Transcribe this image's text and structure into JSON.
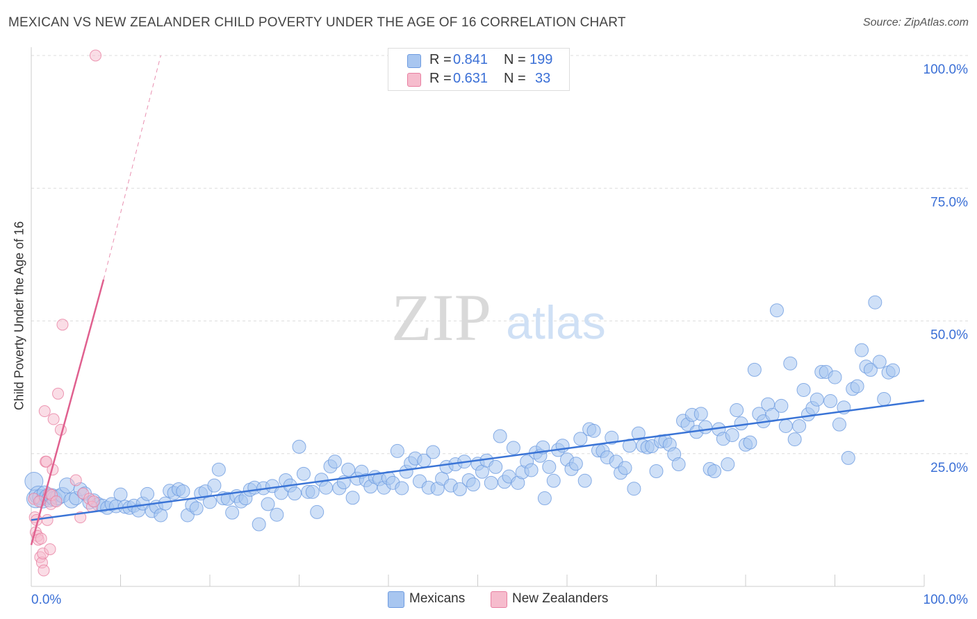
{
  "header": {
    "title": "MEXICAN VS NEW ZEALANDER CHILD POVERTY UNDER THE AGE OF 16 CORRELATION CHART",
    "source": "Source: ZipAtlas.com"
  },
  "watermark": {
    "zip": "ZIP",
    "atlas": "atlas"
  },
  "colors": {
    "blue_fill": "#a8c6f0",
    "blue_stroke": "#6d9be0",
    "blue_line": "#3a74d6",
    "pink_fill": "#f6bccd",
    "pink_stroke": "#e87fa1",
    "pink_line": "#e0608f",
    "axis_text": "#3a6fd6",
    "grid": "#dcdcdc"
  },
  "legend_top": {
    "rows": [
      {
        "r_label": "R =",
        "r_value": "0.841",
        "n_label": "N =",
        "n_value": "199"
      },
      {
        "r_label": "R =",
        "r_value": "0.631",
        "n_label": "N =",
        "n_value": "33"
      }
    ]
  },
  "legend_bottom": {
    "items": [
      "Mexicans",
      "New Zealanders"
    ]
  },
  "chart_data": {
    "type": "scatter",
    "title": "MEXICAN VS NEW ZEALANDER CHILD POVERTY UNDER THE AGE OF 16 CORRELATION CHART",
    "xlabel": "",
    "ylabel": "Child Poverty Under the Age of 16",
    "xlim": [
      0,
      100
    ],
    "ylim": [
      0,
      100
    ],
    "x_tick_labels": [
      "0.0%",
      "100.0%"
    ],
    "y_tick_values": [
      25,
      50,
      75,
      100
    ],
    "y_tick_labels": [
      "25.0%",
      "50.0%",
      "75.0%",
      "100.0%"
    ],
    "grid": true,
    "series": [
      {
        "name": "Mexicans",
        "r": 0.841,
        "n": 199,
        "trend": {
          "x": [
            0,
            100
          ],
          "y": [
            12.5,
            35
          ]
        },
        "points": [
          [
            0.3,
            19.8
          ],
          [
            0.5,
            16.5
          ],
          [
            0.8,
            17.2
          ],
          [
            1.0,
            16.8
          ],
          [
            1.3,
            16.2
          ],
          [
            1.5,
            17.5
          ],
          [
            1.8,
            16.9
          ],
          [
            2.0,
            16.4
          ],
          [
            2.3,
            17.0
          ],
          [
            2.6,
            16.5
          ],
          [
            3.0,
            16.8
          ],
          [
            3.5,
            17.2
          ],
          [
            4.0,
            19.0
          ],
          [
            4.5,
            16.2
          ],
          [
            5.0,
            16.6
          ],
          [
            5.5,
            18.3
          ],
          [
            6.0,
            17.5
          ],
          [
            6.5,
            15.8
          ],
          [
            7.0,
            16.2
          ],
          [
            7.5,
            15.5
          ],
          [
            8.0,
            15.2
          ],
          [
            8.5,
            14.8
          ],
          [
            9.0,
            15.5
          ],
          [
            9.5,
            15.1
          ],
          [
            10.0,
            17.3
          ],
          [
            10.5,
            15.0
          ],
          [
            11.0,
            14.8
          ],
          [
            11.5,
            15.2
          ],
          [
            12.0,
            14.3
          ],
          [
            12.5,
            15.6
          ],
          [
            13.0,
            17.4
          ],
          [
            13.5,
            14.2
          ],
          [
            14.0,
            15.0
          ],
          [
            14.5,
            13.4
          ],
          [
            15.0,
            15.6
          ],
          [
            15.5,
            18.0
          ],
          [
            16.0,
            17.6
          ],
          [
            16.5,
            18.3
          ],
          [
            17.0,
            17.9
          ],
          [
            17.5,
            13.4
          ],
          [
            18.0,
            15.3
          ],
          [
            18.5,
            14.7
          ],
          [
            19.0,
            17.5
          ],
          [
            19.5,
            17.9
          ],
          [
            20.0,
            15.9
          ],
          [
            20.5,
            19.0
          ],
          [
            21.0,
            22.0
          ],
          [
            21.5,
            16.6
          ],
          [
            22.0,
            16.5
          ],
          [
            22.5,
            13.9
          ],
          [
            23.0,
            17.0
          ],
          [
            23.5,
            16.0
          ],
          [
            24.0,
            16.6
          ],
          [
            24.5,
            18.2
          ],
          [
            25.0,
            18.6
          ],
          [
            25.5,
            11.7
          ],
          [
            26.0,
            18.5
          ],
          [
            26.5,
            15.5
          ],
          [
            27.0,
            18.9
          ],
          [
            27.5,
            13.5
          ],
          [
            28.0,
            17.6
          ],
          [
            28.5,
            20.0
          ],
          [
            29.0,
            19.0
          ],
          [
            29.5,
            17.5
          ],
          [
            30.0,
            26.3
          ],
          [
            30.5,
            21.2
          ],
          [
            31.0,
            17.8
          ],
          [
            31.5,
            17.8
          ],
          [
            32.0,
            14.0
          ],
          [
            32.5,
            20.1
          ],
          [
            33.0,
            18.6
          ],
          [
            33.5,
            22.6
          ],
          [
            34.0,
            23.5
          ],
          [
            34.5,
            18.5
          ],
          [
            35.0,
            19.6
          ],
          [
            35.5,
            22.0
          ],
          [
            36.0,
            16.7
          ],
          [
            36.5,
            20.3
          ],
          [
            37.0,
            21.6
          ],
          [
            37.5,
            20.0
          ],
          [
            38.0,
            18.8
          ],
          [
            38.5,
            20.6
          ],
          [
            39.0,
            20.2
          ],
          [
            39.5,
            18.6
          ],
          [
            40.0,
            20.4
          ],
          [
            40.5,
            19.5
          ],
          [
            41.0,
            25.5
          ],
          [
            41.5,
            18.5
          ],
          [
            42.0,
            21.6
          ],
          [
            42.5,
            23.2
          ],
          [
            43.0,
            24.1
          ],
          [
            43.5,
            19.8
          ],
          [
            44.0,
            23.7
          ],
          [
            44.5,
            18.6
          ],
          [
            45.0,
            25.3
          ],
          [
            45.5,
            18.4
          ],
          [
            46.0,
            20.3
          ],
          [
            46.5,
            22.5
          ],
          [
            47.0,
            19.0
          ],
          [
            47.5,
            23.0
          ],
          [
            48.0,
            18.3
          ],
          [
            48.5,
            23.5
          ],
          [
            49.0,
            20.0
          ],
          [
            49.5,
            19.2
          ],
          [
            50.0,
            23.1
          ],
          [
            50.5,
            21.6
          ],
          [
            51.0,
            23.7
          ],
          [
            51.5,
            19.5
          ],
          [
            52.0,
            22.5
          ],
          [
            52.5,
            28.3
          ],
          [
            53.0,
            19.7
          ],
          [
            53.5,
            20.7
          ],
          [
            54.0,
            26.1
          ],
          [
            54.5,
            19.5
          ],
          [
            55.0,
            21.5
          ],
          [
            55.5,
            23.5
          ],
          [
            56.0,
            21.9
          ],
          [
            56.5,
            25.2
          ],
          [
            57.0,
            24.6
          ],
          [
            57.5,
            16.6
          ],
          [
            58.0,
            22.5
          ],
          [
            58.5,
            19.9
          ],
          [
            59.0,
            25.7
          ],
          [
            59.5,
            26.5
          ],
          [
            60.0,
            23.9
          ],
          [
            60.5,
            22.1
          ],
          [
            61.0,
            23.1
          ],
          [
            61.5,
            27.8
          ],
          [
            62.0,
            19.9
          ],
          [
            62.5,
            29.6
          ],
          [
            63.0,
            29.3
          ],
          [
            63.5,
            25.6
          ],
          [
            64.0,
            25.5
          ],
          [
            64.5,
            24.3
          ],
          [
            65.0,
            28.0
          ],
          [
            65.5,
            23.5
          ],
          [
            66.0,
            21.4
          ],
          [
            66.5,
            22.3
          ],
          [
            67.0,
            26.5
          ],
          [
            67.5,
            18.4
          ],
          [
            68.0,
            28.8
          ],
          [
            68.5,
            26.5
          ],
          [
            69.0,
            26.2
          ],
          [
            69.5,
            26.4
          ],
          [
            70.0,
            21.7
          ],
          [
            70.5,
            27.3
          ],
          [
            71.0,
            27.4
          ],
          [
            71.5,
            26.7
          ],
          [
            72.0,
            24.9
          ],
          [
            72.5,
            23.0
          ],
          [
            73.0,
            31.2
          ],
          [
            73.5,
            30.5
          ],
          [
            74.0,
            32.3
          ],
          [
            74.5,
            29.1
          ],
          [
            75.0,
            32.5
          ],
          [
            75.5,
            30.0
          ],
          [
            76.0,
            22.1
          ],
          [
            76.5,
            21.7
          ],
          [
            77.0,
            29.6
          ],
          [
            77.5,
            27.8
          ],
          [
            78.0,
            23.0
          ],
          [
            78.5,
            28.5
          ],
          [
            79.0,
            33.2
          ],
          [
            79.5,
            30.7
          ],
          [
            80.0,
            26.7
          ],
          [
            80.5,
            27.1
          ],
          [
            81.0,
            40.8
          ],
          [
            81.5,
            32.5
          ],
          [
            82.0,
            31.1
          ],
          [
            82.5,
            34.3
          ],
          [
            83.0,
            32.3
          ],
          [
            83.5,
            52.0
          ],
          [
            84.0,
            34.0
          ],
          [
            84.5,
            30.2
          ],
          [
            85.0,
            42.0
          ],
          [
            85.5,
            27.7
          ],
          [
            86.0,
            30.2
          ],
          [
            86.5,
            37.0
          ],
          [
            87.0,
            32.4
          ],
          [
            87.5,
            33.6
          ],
          [
            88.0,
            35.2
          ],
          [
            88.5,
            40.4
          ],
          [
            89.0,
            40.4
          ],
          [
            89.5,
            34.9
          ],
          [
            90.0,
            39.4
          ],
          [
            90.5,
            30.5
          ],
          [
            91.0,
            33.7
          ],
          [
            91.5,
            24.2
          ],
          [
            92.0,
            37.2
          ],
          [
            92.5,
            37.7
          ],
          [
            93.0,
            44.5
          ],
          [
            93.5,
            41.4
          ],
          [
            94.0,
            40.8
          ],
          [
            94.5,
            53.5
          ],
          [
            95.0,
            42.3
          ],
          [
            95.5,
            35.3
          ],
          [
            96.0,
            40.3
          ],
          [
            96.5,
            40.7
          ],
          [
            57.3,
            26.2
          ]
        ]
      },
      {
        "name": "New Zealanders",
        "r": 0.631,
        "n": 33,
        "trend": {
          "x": [
            0,
            8.1
          ],
          "y": [
            7.8,
            57.8
          ],
          "extended": {
            "x": [
              8.1,
              14.5
            ],
            "y": [
              57.8,
              100
            ]
          }
        },
        "points": [
          [
            0.3,
            16.5
          ],
          [
            0.4,
            13.0
          ],
          [
            0.5,
            10.2
          ],
          [
            0.6,
            12.5
          ],
          [
            0.7,
            9.5
          ],
          [
            0.8,
            8.8
          ],
          [
            0.9,
            16.0
          ],
          [
            1.0,
            5.5
          ],
          [
            1.1,
            9.0
          ],
          [
            1.2,
            4.5
          ],
          [
            1.3,
            6.2
          ],
          [
            1.4,
            3.0
          ],
          [
            1.5,
            33.0
          ],
          [
            1.6,
            23.5
          ],
          [
            1.7,
            23.5
          ],
          [
            1.8,
            12.5
          ],
          [
            2.0,
            17.5
          ],
          [
            2.1,
            7.0
          ],
          [
            2.2,
            15.5
          ],
          [
            2.3,
            17.2
          ],
          [
            2.4,
            22.0
          ],
          [
            2.5,
            31.5
          ],
          [
            2.8,
            16.0
          ],
          [
            3.0,
            36.3
          ],
          [
            3.3,
            29.5
          ],
          [
            3.5,
            49.3
          ],
          [
            5.0,
            20.0
          ],
          [
            5.5,
            13.0
          ],
          [
            5.8,
            17.5
          ],
          [
            6.5,
            16.5
          ],
          [
            6.8,
            15.0
          ],
          [
            7.0,
            16.0
          ],
          [
            7.2,
            100
          ]
        ]
      }
    ]
  }
}
